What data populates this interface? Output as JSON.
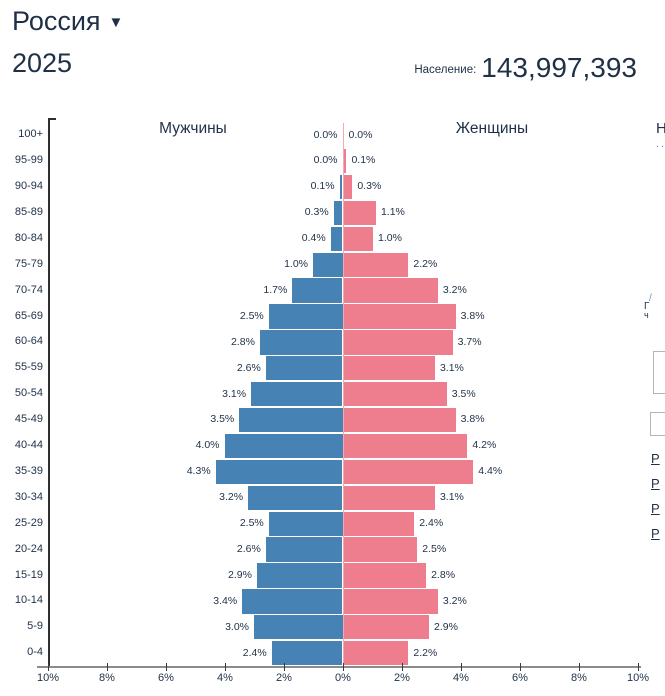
{
  "header": {
    "country": "Россия",
    "dropdown_icon": "▼",
    "year": "2025",
    "population_label": "Население:",
    "population_value": "143,997,393"
  },
  "chart_data": {
    "type": "bar",
    "subtype": "population-pyramid",
    "title": "Россия 2025",
    "left_label": "Мужчины",
    "right_label": "Женщины",
    "categories": [
      "100+",
      "95-99",
      "90-94",
      "85-89",
      "80-84",
      "75-79",
      "70-74",
      "65-69",
      "60-64",
      "55-59",
      "50-54",
      "45-49",
      "40-44",
      "35-39",
      "30-34",
      "25-29",
      "20-24",
      "15-19",
      "10-14",
      "5-9",
      "0-4"
    ],
    "series": [
      {
        "name": "Мужчины",
        "values": [
          0.0,
          0.0,
          0.1,
          0.3,
          0.4,
          1.0,
          1.7,
          2.5,
          2.8,
          2.6,
          3.1,
          3.5,
          4.0,
          4.3,
          3.2,
          2.5,
          2.6,
          2.9,
          3.4,
          3.0,
          2.4
        ]
      },
      {
        "name": "Женщины",
        "values": [
          0.0,
          0.1,
          0.3,
          1.1,
          1.0,
          2.2,
          3.2,
          3.8,
          3.7,
          3.1,
          3.5,
          3.8,
          4.2,
          4.4,
          3.1,
          2.4,
          2.5,
          2.8,
          3.2,
          2.9,
          2.2
        ]
      }
    ],
    "value_suffix": "%",
    "x_axis_ticks": [
      "10%",
      "8%",
      "6%",
      "4%",
      "2%",
      "0%",
      "2%",
      "4%",
      "6%",
      "8%",
      "10%"
    ],
    "xlim": [
      0,
      10
    ],
    "grid": false,
    "male_color": "#4682b4",
    "female_color": "#ee7e8e"
  },
  "right_edge": {
    "heading_fragment": "Н",
    "dotted_link_fragment": "..",
    "icon_fragment": "/",
    "text_fragment_1": "Г",
    "text_fragment_2": "ч",
    "link_fragments": [
      "Р",
      "Р",
      "Р",
      "Р"
    ]
  }
}
